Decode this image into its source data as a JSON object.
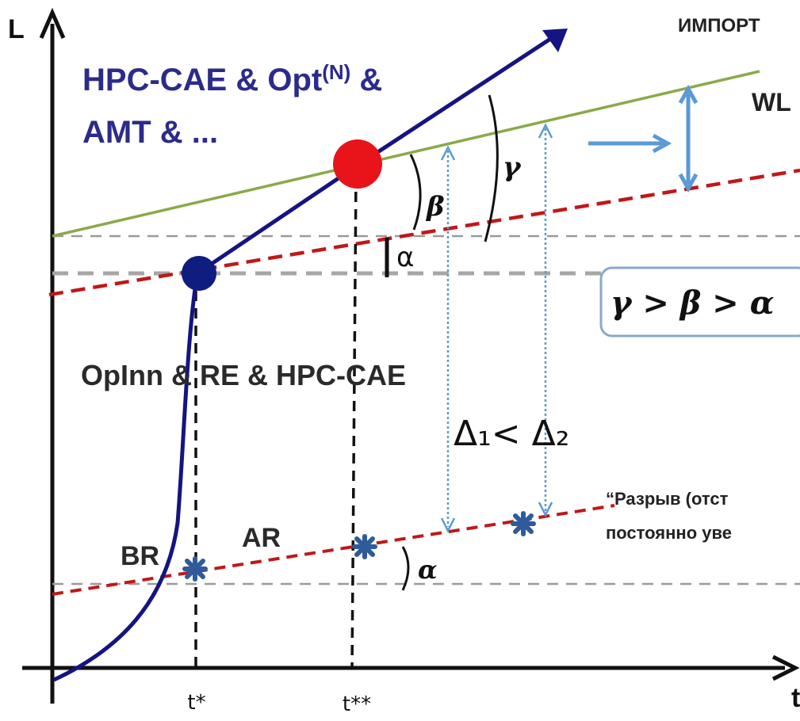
{
  "axes": {
    "y_label": "L",
    "x_label": "t"
  },
  "labels": {
    "import": "ИМПОРТ",
    "wl": "WL",
    "hpc_line1_main": "HPC-CAE & Opt",
    "hpc_line1_sup": "(N)",
    "hpc_line1_tail": " &",
    "hpc_line2": "AMT & ...",
    "opinn": "OpInn & RE & HPC-CAE",
    "br": "BR",
    "ar": "AR",
    "t_star": "t*",
    "t_star2": "t**",
    "alpha_plain": "α",
    "alpha_lower": "α",
    "beta": "β",
    "gamma": "γ",
    "inequality": "γ > β > α",
    "delta": "Δ₁< Δ₂",
    "gap_line1": "“Разрыв (отст",
    "gap_line2": "постоянно уве"
  },
  "colors": {
    "trajectory": "#141482",
    "world_level": "#8aaa4a",
    "trend": "#c01818",
    "red_point": "#e8141a",
    "blue_point": "#0f1c80",
    "marker": "#2f5b9a",
    "arrow_blue": "#5a9ad6",
    "guide_gray": "#9a9a9a",
    "box_border": "#8aa8cc"
  }
}
